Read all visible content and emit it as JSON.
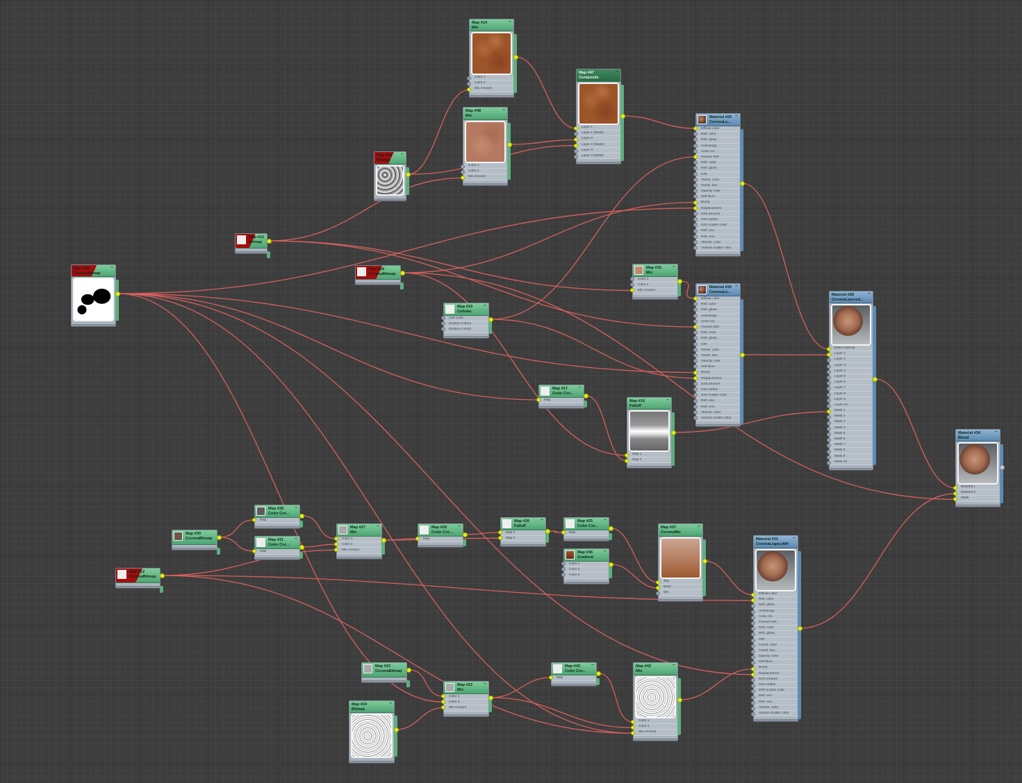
{
  "wire_color": "#e0625f",
  "nodes": [
    {
      "id": "n14",
      "line1": "Map #14",
      "line2": "Mix",
      "kind": "map",
      "preview": "leather",
      "slots": [
        "Color 1",
        "Color 2",
        "Mix Amount"
      ]
    },
    {
      "id": "n47",
      "line1": "Map #47",
      "line2": "Composite",
      "kind": "map",
      "selected": true,
      "preview": "leather",
      "slots": [
        "Layer 1",
        "Layer 1 (Mask)",
        "Layer 2",
        "Layer 2 (Mask)",
        "Layer 3",
        "Layer 3 (Mask)"
      ]
    },
    {
      "id": "n48",
      "line1": "Map #48",
      "line2": "Mix",
      "kind": "map",
      "preview": "leather2",
      "slots": [
        "Color 1",
        "Color 2",
        "Mix Amount"
      ]
    },
    {
      "id": "n44",
      "line1": "Map #44",
      "line2": "Bitmap",
      "kind": "map",
      "missing": true,
      "preview": "noise",
      "slots": []
    },
    {
      "id": "m29",
      "line1": "Material #29",
      "line2": "CoronaLe...",
      "kind": "mat",
      "thumb": "sphere",
      "slots": [
        "Diffuse color",
        "Refl. color",
        "Refl. gloss.",
        "Anisotropy",
        "Aniso rot.",
        "Fresnel IOR",
        "Refr. color",
        "Refr. gloss.",
        "IOR",
        "Transl. color",
        "Transl. frac.",
        "Opacity color",
        "Self-illum.",
        "Bump",
        "Displacement",
        "SSS amount",
        "SSS radius",
        "SSS scatter color",
        "Refl. env.",
        "Refr. env.",
        "Absorb. color",
        "Volume scatter color"
      ]
    },
    {
      "id": "n13",
      "line1": "Map #13",
      "line2": "Bitmap",
      "kind": "map",
      "missing": true,
      "thumb": "white",
      "slots": []
    },
    {
      "id": "n39",
      "line1": "Map #39",
      "line2": "CoronaBitmap",
      "kind": "map",
      "missing": true,
      "preview": "mask",
      "slots": []
    },
    {
      "id": "n18",
      "line1": "Map #18",
      "line2": "CoronaBitmap",
      "kind": "map",
      "missing": true,
      "thumb": "white",
      "slots": []
    },
    {
      "id": "n15",
      "line1": "Map #15",
      "line2": "Mix",
      "kind": "map",
      "thumb": "salmon",
      "slots": [
        "Color 1",
        "Color 2",
        "Mix Amount"
      ]
    },
    {
      "id": "n19",
      "line1": "Map #19",
      "line2": "Cellular",
      "kind": "map",
      "thumb": "white",
      "slots": [
        "Cell Color",
        "Division Color1",
        "Division Color2"
      ]
    },
    {
      "id": "m30",
      "line1": "Material #30",
      "line2": "CoronaLe...",
      "kind": "mat",
      "thumb": "sphere",
      "slots": [
        "Diffuse color",
        "Refl. color",
        "Refl. gloss.",
        "Anisotropy",
        "Aniso rot.",
        "Fresnel IOR",
        "Refr. color",
        "Refr. gloss.",
        "IOR",
        "Transl. color",
        "Transl. frac.",
        "Opacity color",
        "Self-illum.",
        "Bump",
        "Displacement",
        "SSS amount",
        "SSS radius",
        "SSS scatter color",
        "Refl. env.",
        "Refr. env.",
        "Absorb. color",
        "Volume scatter color"
      ]
    },
    {
      "id": "m28",
      "line1": "Material #28",
      "line2": "CoronaLayered...",
      "kind": "mat",
      "preview": "sphere",
      "slots": [
        "Base material",
        "Layer 1",
        "Layer 2",
        "Layer 3",
        "Layer 4",
        "Layer 5",
        "Layer 6",
        "Layer 7",
        "Layer 8",
        "Layer 9",
        "Layer 10",
        "Mask 1",
        "Mask 2",
        "Mask 3",
        "Mask 4",
        "Mask 5",
        "Mask 6",
        "Mask 7",
        "Mask 8",
        "Mask 9",
        "Mask 10"
      ]
    },
    {
      "id": "n17",
      "line1": "Map #17",
      "line2": "Color Cor...",
      "kind": "map",
      "thumb": "white",
      "slots": [
        "Map"
      ]
    },
    {
      "id": "n16",
      "line1": "Map #16",
      "line2": "Falloff",
      "kind": "map",
      "preview": "falloff",
      "slots": [
        "Map 1",
        "Map 2"
      ]
    },
    {
      "id": "m34",
      "line1": "Material #34",
      "line2": "Blend",
      "kind": "mat",
      "preview": "sphere",
      "slots": [
        "Material 1",
        "Material 2",
        "Mask"
      ]
    },
    {
      "id": "n28c",
      "line1": "Map #28",
      "line2": "Color Cor...",
      "kind": "map",
      "thumb": "dark",
      "slots": [
        "Map"
      ]
    },
    {
      "id": "n30",
      "line1": "Map #30",
      "line2": "CoronaBitmap",
      "kind": "map",
      "thumb": "brown",
      "slots": []
    },
    {
      "id": "n31c",
      "line1": "Map #31",
      "line2": "Color Cor...",
      "kind": "map",
      "thumb": "white",
      "slots": [
        "Map"
      ]
    },
    {
      "id": "n27",
      "line1": "Map #27",
      "line2": "Mix",
      "kind": "map",
      "thumb": "gray",
      "slots": [
        "Color 1",
        "Color 2",
        "Mix Amount"
      ]
    },
    {
      "id": "n29c",
      "line1": "Map #29",
      "line2": "Color Cor...",
      "kind": "map",
      "thumb": "white",
      "slots": [
        "Map"
      ]
    },
    {
      "id": "n26",
      "line1": "Map #26",
      "line2": "Falloff",
      "kind": "map",
      "thumb": "white",
      "slots": [
        "Map 1",
        "Map 2"
      ]
    },
    {
      "id": "n25",
      "line1": "Map #25",
      "line2": "Color Cor...",
      "kind": "map",
      "thumb": "white",
      "slots": [
        "Map"
      ]
    },
    {
      "id": "n36",
      "line1": "Map #36",
      "line2": "Gradient",
      "kind": "map",
      "thumb": "grad",
      "slots": [
        "Color 1",
        "Color 2",
        "Color 3"
      ]
    },
    {
      "id": "n37",
      "line1": "Map #37",
      "line2": "CoronaMix",
      "kind": "map",
      "preview": "cmix",
      "slots": [
        "Top",
        "Base",
        "Mix"
      ]
    },
    {
      "id": "m31",
      "line1": "Material #31",
      "line2": "CoronaLegacyMtl",
      "kind": "mat",
      "preview": "sphere",
      "slots": [
        "Diffuse color",
        "Refl. color",
        "Refl. gloss.",
        "Anisotropy",
        "Aniso rot.",
        "Fresnel IOR",
        "Refr. color",
        "Refr. gloss.",
        "IOR",
        "Transl. color",
        "Transl. frac.",
        "Opacity color",
        "Self-illum.",
        "Bump",
        "Displacement",
        "SSS amount",
        "SSS radius",
        "SSS scatter color",
        "Refl. env.",
        "Refr. env.",
        "Absorb. color",
        "Volume scatter color"
      ]
    },
    {
      "id": "n12",
      "line1": "Map #12",
      "line2": "CoronaBitmap",
      "kind": "map",
      "missing": true,
      "thumb": "white",
      "slots": []
    },
    {
      "id": "n23",
      "line1": "Map #23",
      "line2": "CoronaBitmap",
      "kind": "map",
      "thumb": "gray",
      "slots": []
    },
    {
      "id": "n22",
      "line1": "Map #22",
      "line2": "Mix",
      "kind": "map",
      "thumb": "gray",
      "slots": [
        "Color 1",
        "Color 2",
        "Mix Amount"
      ]
    },
    {
      "id": "n24",
      "line1": "Map #24",
      "line2": "Bitmap",
      "kind": "map",
      "preview": "light",
      "slots": []
    },
    {
      "id": "n43",
      "line1": "Map #43",
      "line2": "Color Cor...",
      "kind": "map",
      "thumb": "white",
      "slots": [
        "Map"
      ]
    },
    {
      "id": "n42",
      "line1": "Map #42",
      "line2": "Mix",
      "kind": "map",
      "preview": "light",
      "slots": [
        "Color 1",
        "Color 2",
        "Mix Amount"
      ]
    }
  ],
  "minimize_glyph": "–"
}
